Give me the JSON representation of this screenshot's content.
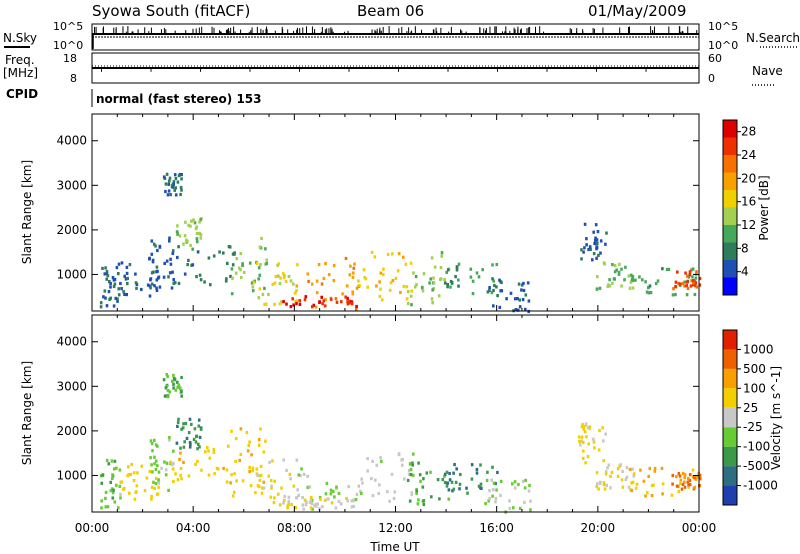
{
  "header": {
    "station": "Syowa South (fitACF)",
    "beam": "Beam 06",
    "date": "01/May/2009"
  },
  "strip": {
    "nsky_label": "N.Sky",
    "nsearch_label": "N.Search",
    "nsky_ticks": [
      "10^5",
      "10^0"
    ],
    "nsearch_ticks": [
      "10^5",
      "10^0"
    ],
    "freq_label": "Freq.",
    "freq_unit": "[MHz]",
    "freq_ticks": [
      "18",
      "8"
    ],
    "nave_label": "Nave",
    "nave_ticks": [
      "60",
      "0"
    ],
    "cpid_label": "CPID",
    "cpid_value": "normal (fast stereo) 153"
  },
  "chart_data": [
    {
      "type": "heatmap",
      "panel": "power",
      "xlabel": "Time UT",
      "ylabel": "Slant Range [km]",
      "x_ticks": [
        "00:00",
        "04:00",
        "08:00",
        "12:00",
        "16:00",
        "20:00",
        "00:00"
      ],
      "xlim_hours": [
        0,
        24
      ],
      "y_ticks": [
        1000,
        2000,
        3000,
        4000
      ],
      "ylim_km": [
        180,
        4600
      ],
      "colorbar": {
        "label": "Power [dB]",
        "ticks": [
          "4",
          "8",
          "12",
          "16",
          "20",
          "24",
          "28"
        ],
        "range": [
          0,
          30
        ],
        "colors": [
          "#0000ff",
          "#1f4fb4",
          "#2e7d5a",
          "#46a85a",
          "#a3d050",
          "#f0d000",
          "#f7a000",
          "#f77000",
          "#ee3000",
          "#dd0000"
        ]
      },
      "echo_regions": [
        {
          "t": [
            0.3,
            1.1
          ],
          "r": [
            300,
            1400
          ],
          "v": 6
        },
        {
          "t": [
            1.0,
            2.6
          ],
          "r": [
            500,
            1300
          ],
          "v": 5
        },
        {
          "t": [
            2.2,
            3.2
          ],
          "r": [
            700,
            1900
          ],
          "v": 5
        },
        {
          "t": [
            2.8,
            3.5
          ],
          "r": [
            2800,
            3300
          ],
          "v": 6
        },
        {
          "t": [
            3.3,
            4.3
          ],
          "r": [
            1600,
            2300
          ],
          "v": 13
        },
        {
          "t": [
            3.0,
            5.6
          ],
          "r": [
            800,
            1700
          ],
          "v": 7
        },
        {
          "t": [
            5.4,
            7.0
          ],
          "r": [
            500,
            2100
          ],
          "v": 12
        },
        {
          "t": [
            6.3,
            8.2
          ],
          "r": [
            300,
            1400
          ],
          "v": 16
        },
        {
          "t": [
            8.0,
            10.6
          ],
          "r": [
            250,
            1400
          ],
          "v": 20
        },
        {
          "t": [
            7.4,
            10.5
          ],
          "r": [
            300,
            550
          ],
          "v": 27
        },
        {
          "t": [
            10.4,
            12.6
          ],
          "r": [
            400,
            1550
          ],
          "v": 17
        },
        {
          "t": [
            12.4,
            14.2
          ],
          "r": [
            350,
            1550
          ],
          "v": 13
        },
        {
          "t": [
            13.9,
            16.0
          ],
          "r": [
            600,
            1300
          ],
          "v": 9
        },
        {
          "t": [
            15.5,
            17.3
          ],
          "r": [
            200,
            950
          ],
          "v": 5
        },
        {
          "t": [
            19.2,
            20.3
          ],
          "r": [
            1300,
            2200
          ],
          "v": 5
        },
        {
          "t": [
            19.9,
            21.4
          ],
          "r": [
            700,
            1300
          ],
          "v": 12
        },
        {
          "t": [
            21.2,
            23.9
          ],
          "r": [
            500,
            1200
          ],
          "v": 10
        },
        {
          "t": [
            22.9,
            24.0
          ],
          "r": [
            700,
            1100
          ],
          "v": 24
        }
      ]
    },
    {
      "type": "heatmap",
      "panel": "velocity",
      "xlabel": "Time UT",
      "ylabel": "Slant Range [km]",
      "x_ticks": [
        "00:00",
        "04:00",
        "08:00",
        "12:00",
        "16:00",
        "20:00",
        "00:00"
      ],
      "xlim_hours": [
        0,
        24
      ],
      "y_ticks": [
        1000,
        2000,
        3000,
        4000
      ],
      "ylim_km": [
        180,
        4600
      ],
      "colorbar": {
        "label": "Velocity [m s^-1]",
        "ticks": [
          "1000",
          "500",
          "100",
          "25",
          "-25",
          "-100",
          "-500",
          "-1000"
        ],
        "range": [
          -1200,
          1200
        ],
        "colors": [
          "#1f3fae",
          "#2e6e80",
          "#3a9a4a",
          "#66cc33",
          "#c8c8c8",
          "#f2d000",
          "#f7a000",
          "#ef6000",
          "#e02000"
        ]
      },
      "echo_regions": [
        {
          "t": [
            0.3,
            1.1
          ],
          "r": [
            300,
            1400
          ],
          "v": -300
        },
        {
          "t": [
            1.0,
            2.6
          ],
          "r": [
            500,
            1300
          ],
          "v": 250
        },
        {
          "t": [
            2.2,
            3.2
          ],
          "r": [
            700,
            1900
          ],
          "v": -200
        },
        {
          "t": [
            2.8,
            3.5
          ],
          "r": [
            2800,
            3300
          ],
          "v": -400
        },
        {
          "t": [
            3.3,
            4.3
          ],
          "r": [
            1600,
            2300
          ],
          "v": -600
        },
        {
          "t": [
            3.0,
            5.6
          ],
          "r": [
            800,
            1700
          ],
          "v": 300
        },
        {
          "t": [
            5.4,
            7.0
          ],
          "r": [
            500,
            2100
          ],
          "v": 300
        },
        {
          "t": [
            6.3,
            8.2
          ],
          "r": [
            300,
            1400
          ],
          "v": 200
        },
        {
          "t": [
            8.0,
            10.6
          ],
          "r": [
            250,
            1400
          ],
          "v": -150
        },
        {
          "t": [
            7.4,
            10.5
          ],
          "r": [
            300,
            550
          ],
          "v": 60
        },
        {
          "t": [
            10.4,
            12.6
          ],
          "r": [
            400,
            1550
          ],
          "v": -20
        },
        {
          "t": [
            12.4,
            14.2
          ],
          "r": [
            350,
            1550
          ],
          "v": -400
        },
        {
          "t": [
            13.9,
            16.0
          ],
          "r": [
            600,
            1300
          ],
          "v": -700
        },
        {
          "t": [
            15.5,
            17.3
          ],
          "r": [
            200,
            950
          ],
          "v": -150
        },
        {
          "t": [
            19.2,
            20.3
          ],
          "r": [
            1300,
            2200
          ],
          "v": 200
        },
        {
          "t": [
            19.9,
            21.4
          ],
          "r": [
            700,
            1300
          ],
          "v": 150
        },
        {
          "t": [
            21.2,
            23.9
          ],
          "r": [
            500,
            1200
          ],
          "v": 400
        },
        {
          "t": [
            22.9,
            24.0
          ],
          "r": [
            700,
            1100
          ],
          "v": 700
        }
      ]
    }
  ]
}
